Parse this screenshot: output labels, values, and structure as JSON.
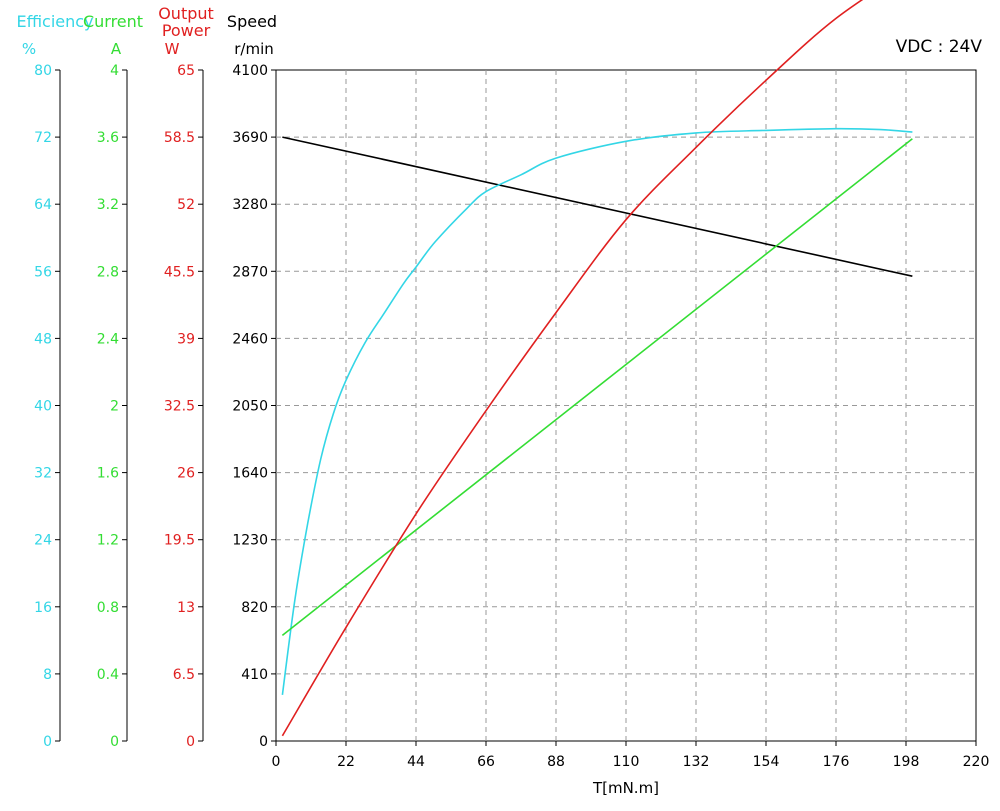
{
  "chart_data": {
    "type": "line",
    "annotation": "VDC : 24V",
    "xlabel": "T[mN.m]",
    "x_ticks": [
      0,
      22,
      44,
      66,
      88,
      110,
      132,
      154,
      176,
      198,
      220
    ],
    "xlim": [
      0,
      220
    ],
    "grid": true,
    "axes": [
      {
        "key": "efficiency",
        "title": "Efficiency",
        "unit": "%",
        "color": "#33d6e6",
        "ticks": [
          "0",
          "8",
          "16",
          "24",
          "32",
          "40",
          "48",
          "56",
          "64",
          "72",
          "80"
        ],
        "ylim": [
          0,
          80
        ]
      },
      {
        "key": "current",
        "title": "Current",
        "unit": "A",
        "color": "#33dd33",
        "ticks": [
          "0",
          "0.4",
          "0.8",
          "1.2",
          "1.6",
          "2",
          "2.4",
          "2.8",
          "3.2",
          "3.6",
          "4"
        ],
        "ylim": [
          0,
          4
        ]
      },
      {
        "key": "power",
        "title_lines": [
          "Output",
          "Power"
        ],
        "unit": "W",
        "color": "#e02020",
        "ticks": [
          "0",
          "6.5",
          "13",
          "19.5",
          "26",
          "32.5",
          "39",
          "45.5",
          "52",
          "58.5",
          "65"
        ],
        "ylim": [
          0,
          65
        ]
      },
      {
        "key": "speed",
        "title": "Speed",
        "unit": "r/min",
        "color": "#000000",
        "ticks": [
          "0",
          "410",
          "820",
          "1230",
          "1640",
          "2050",
          "2460",
          "2870",
          "3280",
          "3690",
          "4100"
        ],
        "ylim": [
          0,
          4100
        ]
      }
    ],
    "series": [
      {
        "axis": "speed",
        "color": "#000000",
        "points": [
          [
            2,
            3690
          ],
          [
            200,
            2840
          ]
        ]
      },
      {
        "axis": "efficiency",
        "color": "#33d6e6",
        "points": [
          [
            2,
            5.5
          ],
          [
            6,
            17
          ],
          [
            10,
            26
          ],
          [
            14,
            33.5
          ],
          [
            18,
            39
          ],
          [
            22,
            43
          ],
          [
            28,
            47.5
          ],
          [
            34,
            51
          ],
          [
            40,
            54.5
          ],
          [
            44,
            56.5
          ],
          [
            50,
            59.5
          ],
          [
            60,
            63.5
          ],
          [
            66,
            65.5
          ],
          [
            77,
            67.5
          ],
          [
            88,
            69.5
          ],
          [
            110,
            71.5
          ],
          [
            132,
            72.5
          ],
          [
            154,
            72.8
          ],
          [
            176,
            73
          ],
          [
            190,
            72.9
          ],
          [
            200,
            72.6
          ]
        ]
      },
      {
        "axis": "current",
        "color": "#33dd33",
        "points": [
          [
            2,
            0.63
          ],
          [
            200,
            3.59
          ]
        ]
      },
      {
        "axis": "power",
        "color": "#e02020",
        "points": [
          [
            2,
            0.5
          ],
          [
            22,
            11
          ],
          [
            44,
            22
          ],
          [
            66,
            32
          ],
          [
            88,
            41.5
          ],
          [
            110,
            50.5
          ],
          [
            132,
            57.5
          ],
          [
            154,
            64
          ],
          [
            176,
            70
          ],
          [
            200,
            75
          ]
        ]
      }
    ]
  }
}
